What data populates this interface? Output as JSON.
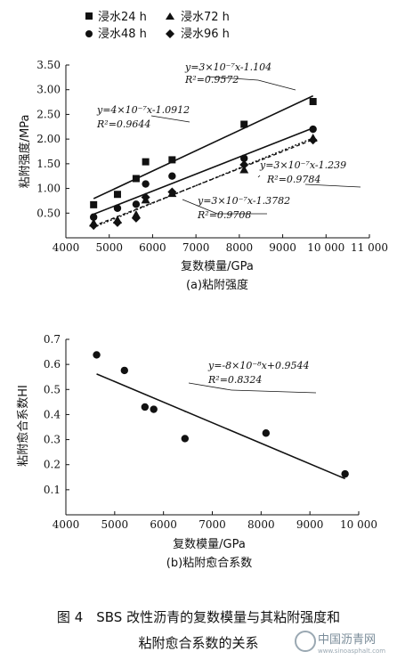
{
  "chart_data": [
    {
      "type": "scatter",
      "xlabel": "复数模量/GPa",
      "ylabel": "粘附强度/MPa",
      "subtitle": "(a)粘附强度",
      "xlim": [
        4000,
        11000
      ],
      "ylim": [
        0,
        3.5
      ],
      "x_ticks": [
        "4000",
        "5000",
        "6000",
        "7000",
        "8000",
        "9000",
        "10 000",
        "11 000"
      ],
      "y_ticks": [
        "0",
        "0.50",
        "1.00",
        "1.50",
        "2.00",
        "2.50",
        "3.00",
        "3.50"
      ],
      "legend_position": "top-left",
      "series": [
        {
          "name": "浸水24 h",
          "marker": "square",
          "x": [
            4640,
            5190,
            5620,
            5840,
            6450,
            8110,
            9700
          ],
          "y": [
            0.67,
            0.88,
            1.2,
            1.54,
            1.58,
            2.3,
            2.76
          ],
          "fit": {
            "label_eq": "y=4×10⁻⁷x-1.0912",
            "label_r2": "R²=0.9644"
          }
        },
        {
          "name": "浸水72 h",
          "marker": "triangle",
          "x": [
            4640,
            5190,
            5620,
            5840,
            6450,
            8110,
            9700
          ],
          "y": [
            0.3,
            0.36,
            0.47,
            0.77,
            0.9,
            1.38,
            2.02
          ],
          "fit": {
            "label_eq": "y=3×10⁻⁷x-1.3782",
            "label_r2": "R²=0.9708"
          }
        },
        {
          "name": "浸水48 h",
          "marker": "circle",
          "x": [
            4640,
            5190,
            5620,
            5840,
            6450,
            8110,
            9700
          ],
          "y": [
            0.42,
            0.6,
            0.68,
            1.09,
            1.25,
            1.61,
            2.2
          ],
          "fit": {
            "label_eq": "y=3×10⁻⁷x-1.104",
            "label_r2": "R²=0.9572"
          }
        },
        {
          "name": "浸水96 h",
          "marker": "diamond",
          "x": [
            4640,
            5190,
            5620,
            5840,
            6450,
            8110,
            9700
          ],
          "y": [
            0.25,
            0.31,
            0.4,
            0.82,
            0.93,
            1.48,
            1.98
          ],
          "fit": {
            "label_eq": "y=3×10⁻⁷x-1.239",
            "label_r2": "R²=0.9784"
          }
        }
      ]
    },
    {
      "type": "scatter",
      "xlabel": "复数模量/GPa",
      "ylabel": "粘附愈合系数HI",
      "subtitle": "(b)粘附愈合系数",
      "xlim": [
        4000,
        10000
      ],
      "ylim": [
        0,
        0.7
      ],
      "x_ticks": [
        "4000",
        "5000",
        "6000",
        "7000",
        "8000",
        "9000",
        "10 000"
      ],
      "y_ticks": [
        "0",
        "0.1",
        "0.2",
        "0.3",
        "0.4",
        "0.5",
        "0.6",
        "0.7"
      ],
      "series": [
        {
          "marker": "circle",
          "x": [
            4630,
            5200,
            5620,
            5800,
            6440,
            8100,
            9720
          ],
          "y": [
            0.638,
            0.576,
            0.43,
            0.421,
            0.304,
            0.326,
            0.163
          ],
          "fit": {
            "label_eq": "y=-8×10⁻⁸x+0.9544",
            "label_r2": "R²=0.8324"
          }
        }
      ]
    }
  ],
  "figure_caption_line1": "图 4　SBS 改性沥青的复数模量与其粘附强度和",
  "figure_caption_line2": "粘附愈合系数的关系",
  "watermark": {
    "text": "中国沥青网",
    "url": "www.sinoasphalt.com"
  }
}
